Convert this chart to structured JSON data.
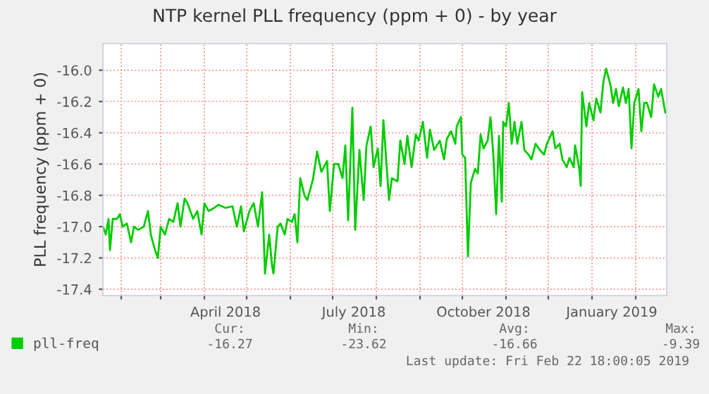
{
  "chart_data": {
    "type": "line",
    "title": "NTP kernel PLL frequency (ppm + 0) - by year",
    "ylabel": "PLL frequency (ppm + 0)",
    "x": [
      "2018-01-19",
      "2018-01-21",
      "2018-01-23",
      "2018-01-24",
      "2018-01-26",
      "2018-01-29",
      "2018-01-31",
      "2018-02-02",
      "2018-02-05",
      "2018-02-08",
      "2018-02-10",
      "2018-02-13",
      "2018-02-17",
      "2018-02-20",
      "2018-02-22",
      "2018-02-25",
      "2018-02-27",
      "2018-03-01",
      "2018-03-04",
      "2018-03-07",
      "2018-03-10",
      "2018-03-13",
      "2018-03-15",
      "2018-03-18",
      "2018-03-20",
      "2018-03-24",
      "2018-03-27",
      "2018-03-30",
      "2018-04-01",
      "2018-04-04",
      "2018-04-08",
      "2018-04-11",
      "2018-04-16",
      "2018-04-21",
      "2018-04-24",
      "2018-04-27",
      "2018-04-29",
      "2018-05-03",
      "2018-05-06",
      "2018-05-09",
      "2018-05-12",
      "2018-05-14",
      "2018-05-17",
      "2018-05-19",
      "2018-05-20",
      "2018-05-23",
      "2018-05-25",
      "2018-05-28",
      "2018-05-30",
      "2018-06-02",
      "2018-06-04",
      "2018-06-06",
      "2018-06-08",
      "2018-06-11",
      "2018-06-13",
      "2018-06-17",
      "2018-06-20",
      "2018-06-23",
      "2018-06-27",
      "2018-06-29",
      "2018-07-02",
      "2018-07-05",
      "2018-07-08",
      "2018-07-10",
      "2018-07-12",
      "2018-07-15",
      "2018-07-17",
      "2018-07-20",
      "2018-07-23",
      "2018-07-25",
      "2018-07-28",
      "2018-07-30",
      "2018-08-02",
      "2018-08-04",
      "2018-08-06",
      "2018-08-10",
      "2018-08-12",
      "2018-08-16",
      "2018-08-18",
      "2018-08-21",
      "2018-08-23",
      "2018-08-26",
      "2018-08-29",
      "2018-08-31",
      "2018-09-03",
      "2018-09-06",
      "2018-09-08",
      "2018-09-11",
      "2018-09-15",
      "2018-09-18",
      "2018-09-20",
      "2018-09-23",
      "2018-09-26",
      "2018-09-27",
      "2018-09-30",
      "2018-10-01",
      "2018-10-03",
      "2018-10-05",
      "2018-10-07",
      "2018-10-10",
      "2018-10-12",
      "2018-10-14",
      "2018-10-16",
      "2018-10-19",
      "2018-10-21",
      "2018-10-23",
      "2018-10-25",
      "2018-10-27",
      "2018-10-29",
      "2018-10-30",
      "2018-11-01",
      "2018-11-03",
      "2018-11-05",
      "2018-11-07",
      "2018-11-09",
      "2018-11-12",
      "2018-11-14",
      "2018-11-17",
      "2018-11-19",
      "2018-11-22",
      "2018-11-25",
      "2018-11-28",
      "2018-11-30",
      "2018-12-04",
      "2018-12-06",
      "2018-12-09",
      "2018-12-11",
      "2018-12-14",
      "2018-12-16",
      "2018-12-19",
      "2018-12-20",
      "2018-12-23",
      "2018-12-24",
      "2018-12-25",
      "2018-12-28",
      "2018-12-30",
      "2019-01-02",
      "2019-01-04",
      "2019-01-07",
      "2019-01-09",
      "2019-01-11",
      "2019-01-14",
      "2019-01-16",
      "2019-01-18",
      "2019-01-20",
      "2019-01-23",
      "2019-01-25",
      "2019-01-27",
      "2019-01-29",
      "2019-01-31",
      "2019-02-03",
      "2019-02-05",
      "2019-02-07",
      "2019-02-09",
      "2019-02-12",
      "2019-02-14",
      "2019-02-17",
      "2019-02-19",
      "2019-02-22"
    ],
    "series": [
      {
        "name": "pll-freq",
        "color": "#00cc00",
        "values": [
          -17.0,
          -17.05,
          -16.95,
          -17.15,
          -16.95,
          -16.95,
          -16.92,
          -17.0,
          -16.98,
          -17.1,
          -17.0,
          -17.02,
          -17.0,
          -16.9,
          -17.05,
          -17.15,
          -17.2,
          -17.0,
          -17.05,
          -16.95,
          -16.97,
          -16.85,
          -17.0,
          -16.82,
          -16.85,
          -16.95,
          -16.9,
          -17.05,
          -16.85,
          -16.9,
          -16.88,
          -16.86,
          -16.88,
          -16.87,
          -17.0,
          -16.87,
          -17.03,
          -16.9,
          -16.85,
          -17.0,
          -16.78,
          -17.3,
          -17.05,
          -17.25,
          -17.3,
          -17.0,
          -16.98,
          -17.05,
          -16.95,
          -16.97,
          -16.92,
          -17.1,
          -16.69,
          -16.8,
          -16.83,
          -16.7,
          -16.52,
          -16.65,
          -16.58,
          -16.9,
          -16.6,
          -16.6,
          -16.69,
          -16.48,
          -16.96,
          -16.24,
          -17.02,
          -16.51,
          -16.83,
          -16.48,
          -16.36,
          -16.62,
          -16.5,
          -16.74,
          -16.32,
          -16.83,
          -16.69,
          -16.71,
          -16.45,
          -16.6,
          -16.42,
          -16.62,
          -16.41,
          -16.45,
          -16.33,
          -16.56,
          -16.38,
          -16.51,
          -16.45,
          -16.57,
          -16.44,
          -16.39,
          -16.47,
          -16.36,
          -16.3,
          -16.54,
          -16.56,
          -17.19,
          -16.72,
          -16.63,
          -16.66,
          -16.41,
          -16.5,
          -16.45,
          -16.3,
          -16.54,
          -16.92,
          -16.42,
          -16.84,
          -16.33,
          -16.36,
          -16.21,
          -16.47,
          -16.33,
          -16.47,
          -16.33,
          -16.51,
          -16.54,
          -16.57,
          -16.47,
          -16.51,
          -16.54,
          -16.47,
          -16.39,
          -16.5,
          -16.47,
          -16.57,
          -16.62,
          -16.56,
          -16.62,
          -16.48,
          -16.63,
          -16.74,
          -16.14,
          -16.36,
          -16.21,
          -16.32,
          -16.18,
          -16.27,
          -16.08,
          -15.99,
          -16.09,
          -16.21,
          -16.12,
          -16.23,
          -16.11,
          -16.21,
          -16.12,
          -16.5,
          -16.21,
          -16.12,
          -16.39,
          -16.21,
          -16.21,
          -16.3,
          -16.09,
          -16.17,
          -16.12,
          -16.27
        ]
      }
    ],
    "xlim": [
      "2018-01-19",
      "2019-02-23"
    ],
    "xticks": [
      {
        "value": "2018-02-01",
        "label": null
      },
      {
        "value": "2018-03-01",
        "label": null
      },
      {
        "value": "2018-04-01",
        "label": null
      },
      {
        "value": "2018-04-16",
        "label": "April 2018"
      },
      {
        "value": "2018-05-01",
        "label": null
      },
      {
        "value": "2018-06-01",
        "label": null
      },
      {
        "value": "2018-07-01",
        "label": null
      },
      {
        "value": "2018-07-16",
        "label": "July 2018"
      },
      {
        "value": "2018-08-01",
        "label": null
      },
      {
        "value": "2018-09-01",
        "label": null
      },
      {
        "value": "2018-10-01",
        "label": null
      },
      {
        "value": "2018-10-16",
        "label": "October 2018"
      },
      {
        "value": "2018-11-01",
        "label": null
      },
      {
        "value": "2018-12-01",
        "label": null
      },
      {
        "value": "2019-01-01",
        "label": null
      },
      {
        "value": "2019-01-15",
        "label": "January 2019"
      },
      {
        "value": "2019-02-01",
        "label": null
      }
    ],
    "ylim": [
      -17.44,
      -15.83
    ],
    "yticks": [
      -17.4,
      -17.2,
      {
        "value": -17,
        "label": "-17.0"
      },
      -16.8,
      -16.6,
      -16.4,
      -16.2,
      {
        "value": -16,
        "label": "-16.0"
      }
    ],
    "grid": true,
    "legend": "bottom",
    "line_style": "solid",
    "annotations": [
      "Cur:",
      "Min:",
      "Avg:",
      "Max:",
      "-16.27",
      "-23.62",
      "-16.66",
      "-9.39",
      "Last update: Fri Feb 22 18:00:05 2019"
    ]
  }
}
